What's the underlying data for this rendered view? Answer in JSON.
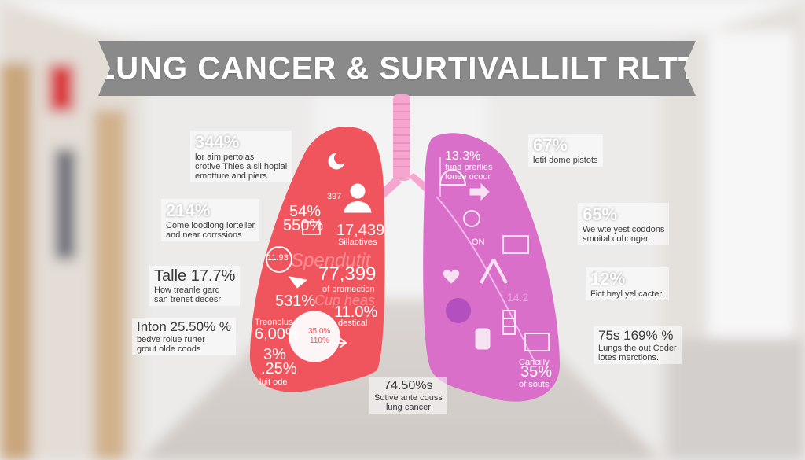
{
  "title": "LUNG CANCER & SURTIVALLILT RLTT",
  "left_callouts": [
    {
      "value": "344%",
      "lines": [
        "lor aim pertolas",
        "crotive Thies a sll hopial",
        "emotture and piers."
      ]
    },
    {
      "value": "214%",
      "lines": [
        "Come loodiong lortelier",
        "and near corrssions"
      ]
    },
    {
      "value": "Talle 17.7%",
      "lines": [
        "How treanle gard",
        "san trenet decesr"
      ]
    },
    {
      "value": "Inton 25.50% %",
      "lines": [
        "bedve rolue rurter",
        "grout olde coods"
      ]
    }
  ],
  "right_callouts": [
    {
      "value": "67%",
      "lines": [
        "letit dome pistots"
      ]
    },
    {
      "value": "65%",
      "lines": [
        "We wte yest coddons",
        "smoital cohonger."
      ]
    },
    {
      "value": "12%",
      "lines": [
        "Fict beyl yel cacter."
      ]
    },
    {
      "value": "75s 169% %",
      "lines": [
        "Lungs the out Coder",
        "lotes merctions."
      ]
    }
  ],
  "bottom_center": {
    "value": "74.50%s",
    "lines": [
      "Sotive ante couss",
      "lung cancer"
    ]
  },
  "left_lung_labels": {
    "a": "54%",
    "b": "550%",
    "c": "17,439",
    "c_sub": "Sillaotives",
    "faded": "Spendutit",
    "d": "77,399",
    "d_sub": "of promection",
    "e": "531%",
    "faded2": "Cup heas",
    "f": "11.0%",
    "f_sub": "destical",
    "g_sub": "Treonolus",
    "g": "6,00%",
    "h": "35.0%",
    "h2": "110%",
    "i": "3%",
    "j": ".25%",
    "j_sub": "luit ode",
    "k": "397",
    "l": "11.93"
  },
  "right_lung_labels": {
    "a": "13.3%",
    "a_lines": [
      "fuad prerlies",
      "tonee ocoor"
    ],
    "b": "ON",
    "c": "14.2",
    "d_lines": [
      "Cancilly"
    ],
    "d": "35%",
    "d_sub": "of souts"
  },
  "colors": {
    "banner": "#8a8a8a",
    "left_lung": "#f0545c",
    "right_lung": "#d96fc9",
    "trachea": "#f4a6cf"
  }
}
